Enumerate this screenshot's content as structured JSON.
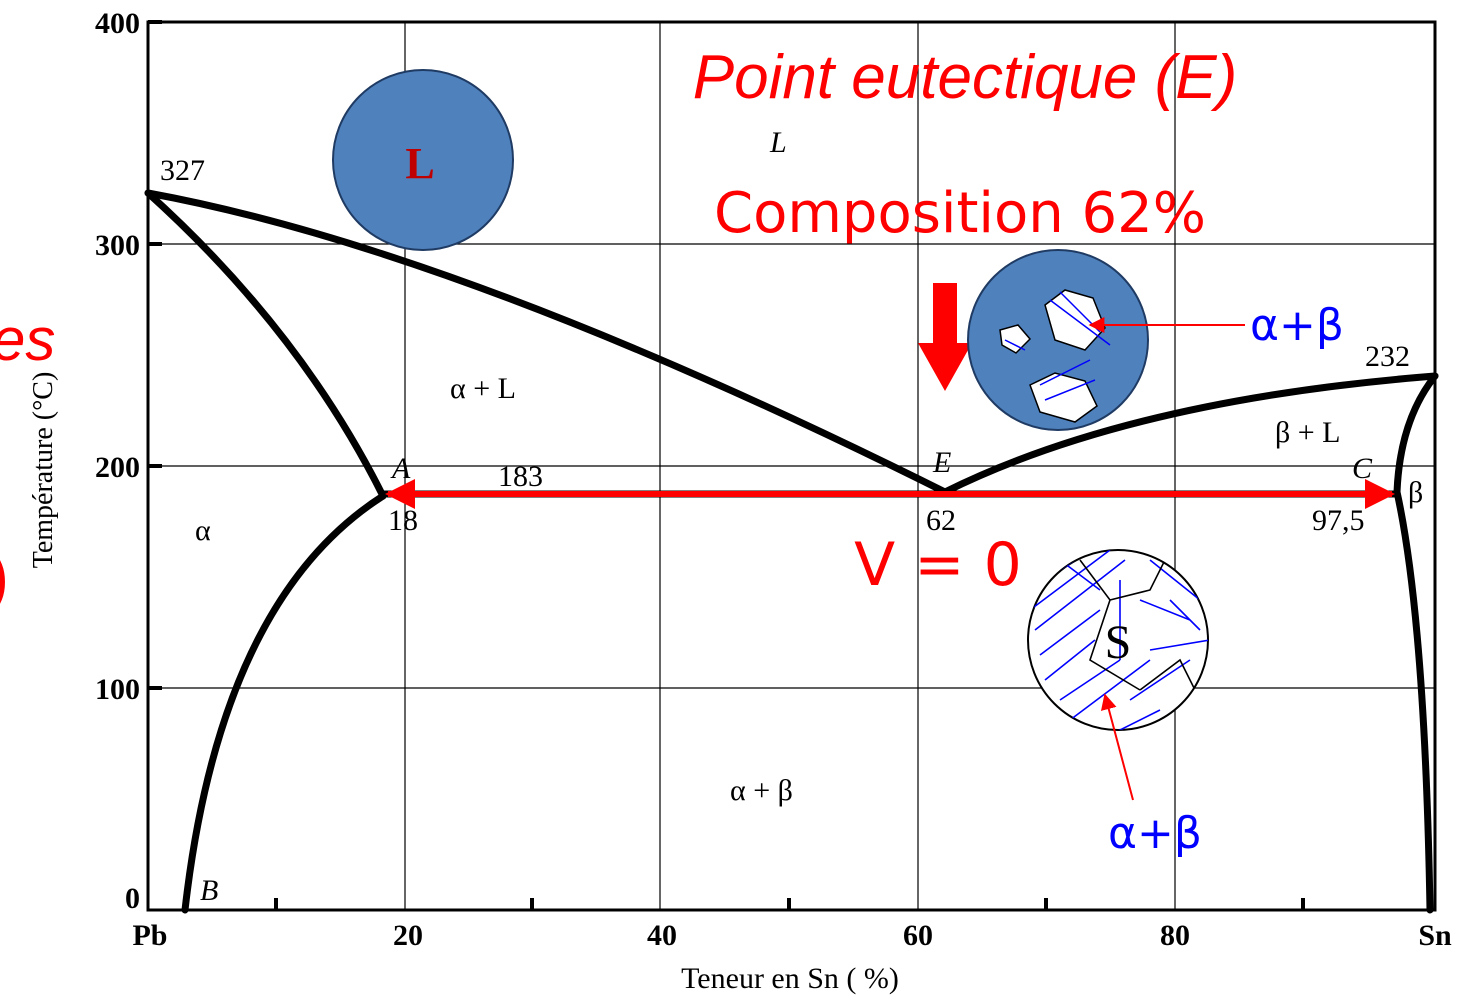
{
  "axes": {
    "y_ticks": [
      "400",
      "300",
      "200",
      "100",
      "0"
    ],
    "x_ticks": [
      "Pb",
      "20",
      "40",
      "60",
      "80",
      "Sn"
    ],
    "x_label": "Teneur en Sn ( %)",
    "y_label": "Température (°C)"
  },
  "points": {
    "pb_melting": "327",
    "sn_melting": "232",
    "eutectic_temp": "183",
    "a_label": "A",
    "a_comp": "18",
    "e_label": "E",
    "e_comp": "62",
    "c_label": "C",
    "c_comp": "97,5",
    "b_label": "B"
  },
  "regions": {
    "liquid": "L",
    "alpha_liquid": "α + L",
    "beta_liquid": "β + L",
    "alpha": "α",
    "beta": "β",
    "alpha_beta": "α + β"
  },
  "annotations": {
    "title": "Point eutectique (E)",
    "composition": "Composition 62%",
    "variance": "V = 0",
    "upper_phases": "α+β",
    "lower_phases": "α+β",
    "liquid_circle": "L",
    "solid_circle": "S",
    "cut_text_1": "es",
    "cut_text_2": ")"
  }
}
